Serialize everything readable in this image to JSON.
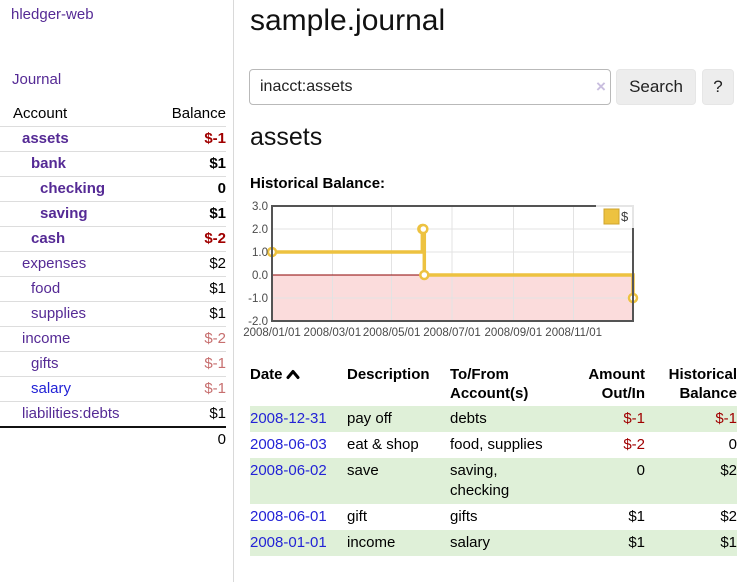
{
  "app": {
    "brand": "hledger-web",
    "nav": {
      "journal": "Journal"
    }
  },
  "sidebar": {
    "header": {
      "account": "Account",
      "balance": "Balance"
    },
    "accounts": [
      {
        "name": "assets",
        "balance": "$-1",
        "indent": 1,
        "bold": true,
        "balance_class": "neg-strong"
      },
      {
        "name": "bank",
        "balance": "$1",
        "indent": 2,
        "bold": true,
        "balance_class": ""
      },
      {
        "name": "checking",
        "balance": "0",
        "indent": 3,
        "bold": true,
        "balance_class": ""
      },
      {
        "name": "saving",
        "balance": "$1",
        "indent": 3,
        "bold": true,
        "balance_class": ""
      },
      {
        "name": "cash",
        "balance": "$-2",
        "indent": 2,
        "bold": true,
        "balance_class": "neg-strong"
      },
      {
        "name": "expenses",
        "balance": "$2",
        "indent": 1,
        "bold": false,
        "balance_class": ""
      },
      {
        "name": "food",
        "balance": "$1",
        "indent": 2,
        "bold": false,
        "balance_class": ""
      },
      {
        "name": "supplies",
        "balance": "$1",
        "indent": 2,
        "bold": false,
        "balance_class": ""
      },
      {
        "name": "income",
        "balance": "$-2",
        "indent": 1,
        "bold": false,
        "balance_class": "neg-soft"
      },
      {
        "name": "gifts",
        "balance": "$-1",
        "indent": 2,
        "bold": false,
        "balance_class": "neg-soft"
      },
      {
        "name": "salary",
        "balance": "$-1",
        "indent": 2,
        "bold": false,
        "balance_class": "neg-soft",
        "link_class": "blue"
      },
      {
        "name": "liabilities:debts",
        "balance": "$1",
        "indent": 1,
        "bold": false,
        "balance_class": ""
      }
    ],
    "total": "0"
  },
  "header": {
    "title": "sample.journal"
  },
  "search": {
    "value": "inacct:assets",
    "clear_label": "×",
    "button_label": "Search",
    "help_label": "?"
  },
  "register": {
    "heading": "assets",
    "chart_label": "Historical Balance:",
    "table": {
      "headers": [
        "Date",
        "Description",
        "To/From Account(s)",
        "Amount Out/In",
        "Historical Balance"
      ],
      "rows": [
        {
          "date": "2008-12-31",
          "description": "pay off",
          "accounts": [
            "debts"
          ],
          "amount": "$-1",
          "amount_class": "neg-strong",
          "balance": "$-1",
          "balance_class": "neg-strong",
          "shade": true
        },
        {
          "date": "2008-06-03",
          "description": "eat & shop",
          "accounts": [
            "food, supplies"
          ],
          "amount": "$-2",
          "amount_class": "neg-strong",
          "balance": "0",
          "balance_class": "",
          "shade": false
        },
        {
          "date": "2008-06-02",
          "description": "save",
          "accounts": [
            "saving,",
            "checking"
          ],
          "amount": "0",
          "amount_class": "",
          "balance": "$2",
          "balance_class": "",
          "shade": true
        },
        {
          "date": "2008-06-01",
          "description": "gift",
          "accounts": [
            "gifts"
          ],
          "amount": "$1",
          "amount_class": "",
          "balance": "$2",
          "balance_class": "",
          "shade": false
        },
        {
          "date": "2008-01-01",
          "description": "income",
          "accounts": [
            "salary"
          ],
          "amount": "$1",
          "amount_class": "",
          "balance": "$1",
          "balance_class": "",
          "shade": true
        }
      ]
    }
  },
  "chart_data": {
    "type": "line",
    "step": true,
    "title": "Historical Balance",
    "series": [
      {
        "name": "$",
        "color": "#edc240",
        "points": [
          {
            "date": "2008-01-01",
            "day": 0,
            "value": 1.0
          },
          {
            "date": "2008-06-01",
            "day": 152,
            "value": 2.0
          },
          {
            "date": "2008-06-02",
            "day": 153,
            "value": 2.0
          },
          {
            "date": "2008-06-03",
            "day": 154,
            "value": 0.0
          },
          {
            "date": "2008-12-31",
            "day": 365,
            "value": -1.0
          }
        ]
      }
    ],
    "x_ticks": [
      {
        "label": "2008/01/01",
        "day": 0
      },
      {
        "label": "2008/03/01",
        "day": 61
      },
      {
        "label": "2008/05/01",
        "day": 121
      },
      {
        "label": "2008/07/01",
        "day": 182
      },
      {
        "label": "2008/09/01",
        "day": 244
      },
      {
        "label": "2008/11/01",
        "day": 305
      }
    ],
    "y_ticks": [
      {
        "label": "3.0",
        "value": 3
      },
      {
        "label": "2.0",
        "value": 2
      },
      {
        "label": "1.0",
        "value": 1
      },
      {
        "label": "0.0",
        "value": 0
      },
      {
        "label": "-1.0",
        "value": -1
      },
      {
        "label": "-2.0",
        "value": -2
      }
    ],
    "xlim_days": [
      0,
      365
    ],
    "ylim": [
      -2,
      3
    ],
    "grid": true,
    "legend_position": "top-right",
    "colors": {
      "negative_region": "#fbdcdc",
      "zero_line": "#8b0000",
      "grid_line": "#e3e3e3",
      "plot_border": "#545454",
      "tick_text": "#4a4a4a"
    }
  }
}
